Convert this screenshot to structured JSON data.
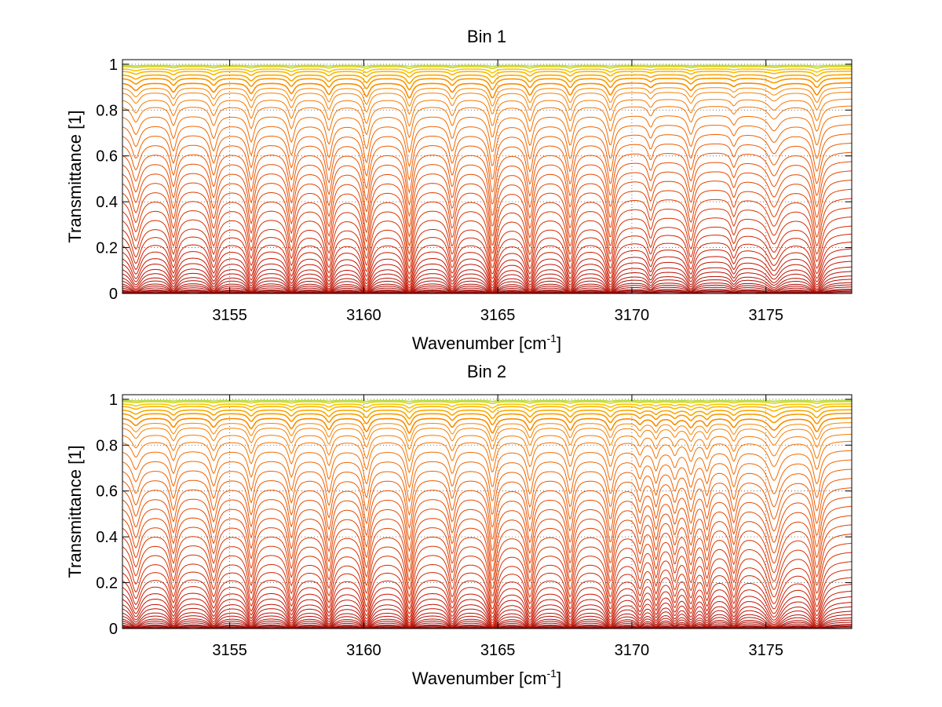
{
  "chart_data": [
    {
      "type": "line",
      "title": "Bin 1",
      "xlabel": "Wavenumber [cm",
      "xlabel_sup": "-1",
      "xlabel_end": "]",
      "ylabel": "Transmittance [1]",
      "xlim": [
        3151.0,
        3178.2
      ],
      "ylim": [
        0,
        1.02
      ],
      "x_ticks": [
        3155,
        3160,
        3165,
        3170,
        3175
      ],
      "x_tick_labels": [
        "3155",
        "3160",
        "3165",
        "3170",
        "3175"
      ],
      "y_ticks": [
        0,
        0.2,
        0.4,
        0.6,
        0.8,
        1
      ],
      "y_tick_labels": [
        "0",
        "0.2",
        "0.4",
        "0.6",
        "0.8",
        "1"
      ],
      "grid": "dotted",
      "series_count": 40,
      "series_description_color": "gradient dark red (low) to yellow-green (high)",
      "baseline_transmittance": [
        0.005,
        0.01,
        0.015,
        0.02,
        0.03,
        0.04,
        0.05,
        0.065,
        0.08,
        0.1,
        0.12,
        0.145,
        0.17,
        0.2,
        0.23,
        0.265,
        0.3,
        0.34,
        0.38,
        0.42,
        0.46,
        0.5,
        0.54,
        0.58,
        0.62,
        0.66,
        0.7,
        0.74,
        0.78,
        0.82,
        0.85,
        0.88,
        0.9,
        0.92,
        0.94,
        0.955,
        0.97,
        0.98,
        0.99,
        0.995
      ],
      "absorption_lines": [
        {
          "x": 3151.5,
          "depth": 0.25,
          "width": 0.18
        },
        {
          "x": 3152.9,
          "depth": 0.3,
          "width": 0.14
        },
        {
          "x": 3154.4,
          "depth": 0.3,
          "width": 0.15
        },
        {
          "x": 3155.8,
          "depth": 0.35,
          "width": 0.14
        },
        {
          "x": 3157.3,
          "depth": 0.35,
          "width": 0.14
        },
        {
          "x": 3158.7,
          "depth": 0.38,
          "width": 0.14
        },
        {
          "x": 3160.1,
          "depth": 0.45,
          "width": 0.14
        },
        {
          "x": 3161.7,
          "depth": 0.5,
          "width": 0.14
        },
        {
          "x": 3163.3,
          "depth": 0.3,
          "width": 0.14
        },
        {
          "x": 3164.8,
          "depth": 0.5,
          "width": 0.14
        },
        {
          "x": 3166.2,
          "depth": 0.4,
          "width": 0.14
        },
        {
          "x": 3167.7,
          "depth": 0.4,
          "width": 0.14
        },
        {
          "x": 3169.2,
          "depth": 0.4,
          "width": 0.14
        },
        {
          "x": 3170.7,
          "depth": 0.15,
          "width": 0.12
        },
        {
          "x": 3172.2,
          "depth": 0.25,
          "width": 0.14
        },
        {
          "x": 3173.8,
          "depth": 0.12,
          "width": 0.12
        },
        {
          "x": 3175.3,
          "depth": 0.2,
          "width": 0.25
        },
        {
          "x": 3176.9,
          "depth": 0.4,
          "width": 0.16
        }
      ]
    },
    {
      "type": "line",
      "title": "Bin 2",
      "xlabel": "Wavenumber [cm",
      "xlabel_sup": "-1",
      "xlabel_end": "]",
      "ylabel": "Transmittance [1]",
      "xlim": [
        3151.0,
        3178.2
      ],
      "ylim": [
        0,
        1.02
      ],
      "x_ticks": [
        3155,
        3160,
        3165,
        3170,
        3175
      ],
      "x_tick_labels": [
        "3155",
        "3160",
        "3165",
        "3170",
        "3175"
      ],
      "y_ticks": [
        0,
        0.2,
        0.4,
        0.6,
        0.8,
        1
      ],
      "y_tick_labels": [
        "0",
        "0.2",
        "0.4",
        "0.6",
        "0.8",
        "1"
      ],
      "grid": "dotted",
      "series_count": 40,
      "series_description_color": "gradient dark red (low) to yellow-green (high)",
      "baseline_transmittance": [
        0.005,
        0.01,
        0.015,
        0.02,
        0.03,
        0.04,
        0.05,
        0.065,
        0.08,
        0.1,
        0.12,
        0.145,
        0.17,
        0.2,
        0.23,
        0.265,
        0.3,
        0.34,
        0.38,
        0.42,
        0.46,
        0.5,
        0.54,
        0.58,
        0.62,
        0.66,
        0.7,
        0.74,
        0.78,
        0.82,
        0.85,
        0.88,
        0.9,
        0.92,
        0.94,
        0.955,
        0.97,
        0.98,
        0.99,
        0.995
      ],
      "absorption_lines": [
        {
          "x": 3151.5,
          "depth": 0.25,
          "width": 0.18
        },
        {
          "x": 3152.9,
          "depth": 0.3,
          "width": 0.14
        },
        {
          "x": 3154.4,
          "depth": 0.3,
          "width": 0.15
        },
        {
          "x": 3155.8,
          "depth": 0.35,
          "width": 0.14
        },
        {
          "x": 3157.3,
          "depth": 0.35,
          "width": 0.14
        },
        {
          "x": 3158.7,
          "depth": 0.38,
          "width": 0.14
        },
        {
          "x": 3160.1,
          "depth": 0.45,
          "width": 0.14
        },
        {
          "x": 3161.7,
          "depth": 0.5,
          "width": 0.14
        },
        {
          "x": 3163.3,
          "depth": 0.3,
          "width": 0.14
        },
        {
          "x": 3164.8,
          "depth": 0.5,
          "width": 0.14
        },
        {
          "x": 3166.2,
          "depth": 0.4,
          "width": 0.14
        },
        {
          "x": 3167.7,
          "depth": 0.4,
          "width": 0.14
        },
        {
          "x": 3169.2,
          "depth": 0.4,
          "width": 0.14
        },
        {
          "x": 3170.3,
          "depth": 0.2,
          "width": 0.12
        },
        {
          "x": 3170.9,
          "depth": 0.25,
          "width": 0.12
        },
        {
          "x": 3171.6,
          "depth": 0.2,
          "width": 0.12
        },
        {
          "x": 3172.2,
          "depth": 0.3,
          "width": 0.14
        },
        {
          "x": 3172.8,
          "depth": 0.25,
          "width": 0.12
        },
        {
          "x": 3173.8,
          "depth": 0.3,
          "width": 0.14
        },
        {
          "x": 3175.3,
          "depth": 0.4,
          "width": 0.25
        },
        {
          "x": 3176.9,
          "depth": 0.45,
          "width": 0.16
        }
      ]
    }
  ]
}
